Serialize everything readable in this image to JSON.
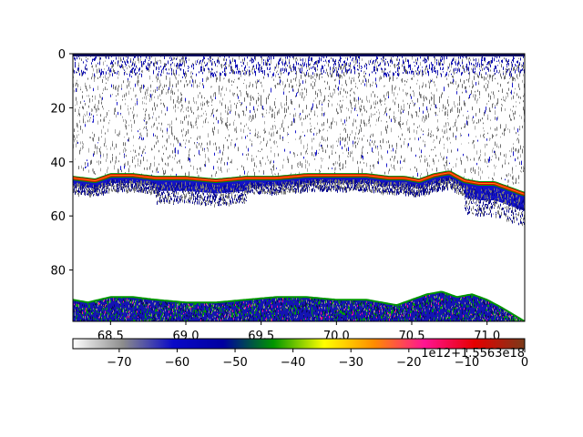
{
  "chart_data": {
    "type": "heatmap",
    "title": "",
    "xlabel": "",
    "ylabel": "",
    "x_range": [
      68.25,
      71.25
    ],
    "y_range": [
      0,
      99
    ],
    "y_inverted": true,
    "x_ticks": [
      "68.5",
      "69.0",
      "69.5",
      "70.0",
      "70.5",
      "71.0"
    ],
    "x_tick_values": [
      68.5,
      69.0,
      69.5,
      70.0,
      70.5,
      71.0
    ],
    "y_ticks": [
      "0",
      "20",
      "40",
      "60",
      "80"
    ],
    "y_tick_values": [
      0,
      20,
      40,
      60,
      80
    ],
    "x_offset_text": "1e12+1.5563e18",
    "colorbar": {
      "range": [
        -78,
        0
      ],
      "ticks": [
        "−70",
        "−60",
        "−50",
        "−40",
        "−30",
        "−20",
        "−10",
        "0"
      ],
      "tick_values": [
        -70,
        -60,
        -50,
        -40,
        -30,
        -20,
        -10,
        0
      ],
      "colors": [
        "#ffffff",
        "#8c8c8c",
        "#0a0ac8",
        "#0000a0",
        "#009600",
        "#ffff00",
        "#ff8c00",
        "#ff1493",
        "#e60000",
        "#7a3a1a"
      ]
    },
    "layers": {
      "bottom_line_depth": [
        46,
        47,
        45,
        45,
        46,
        46,
        47,
        46,
        46,
        45,
        45,
        45,
        46,
        46,
        47,
        45,
        44,
        47,
        48,
        48,
        50,
        52
      ],
      "bottom_line_x": [
        68.25,
        68.4,
        68.5,
        68.65,
        68.8,
        69.0,
        69.2,
        69.4,
        69.6,
        69.8,
        70.0,
        70.2,
        70.35,
        70.45,
        70.55,
        70.65,
        70.75,
        70.85,
        70.95,
        71.05,
        71.15,
        71.25
      ],
      "second_echo_depth": [
        91,
        92,
        90,
        90,
        91,
        92,
        92,
        91,
        90,
        90,
        91,
        91,
        92,
        93,
        91,
        89,
        88,
        90,
        89,
        91,
        94,
        99
      ],
      "second_echo_x": [
        68.25,
        68.35,
        68.5,
        68.65,
        68.8,
        69.0,
        69.2,
        69.4,
        69.6,
        69.8,
        70.0,
        70.2,
        70.3,
        70.4,
        70.5,
        70.6,
        70.7,
        70.8,
        70.9,
        71.0,
        71.1,
        71.25
      ]
    }
  }
}
